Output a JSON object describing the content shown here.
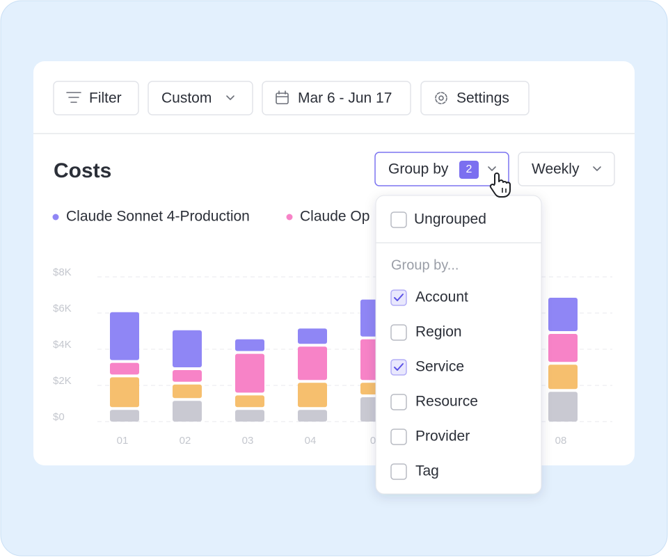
{
  "toolbar": {
    "filter": "Filter",
    "range_preset": "Custom",
    "date_range": "Mar 6 - Jun 17",
    "settings": "Settings"
  },
  "header": {
    "title": "Costs",
    "group_by": "Group by",
    "group_by_count": "2",
    "interval": "Weekly"
  },
  "chart_data": {
    "type": "bar",
    "stacked": true,
    "categories": [
      "01",
      "02",
      "03",
      "04",
      "0",
      null,
      null,
      "08"
    ],
    "series": [
      {
        "color": "#c9c9d2",
        "values": [
          800,
          1300,
          800,
          800,
          1500,
          null,
          null,
          1800
        ]
      },
      {
        "color": "#f6bf6e",
        "values": [
          1800,
          900,
          800,
          1500,
          800,
          null,
          null,
          1500
        ]
      },
      {
        "name": "Claude Op",
        "color": "#f783c7",
        "values": [
          800,
          800,
          2300,
          2000,
          2400,
          null,
          null,
          1700
        ]
      },
      {
        "name": "Claude Sonnet 4-Production",
        "color": "#8f86f5",
        "values": [
          2800,
          2200,
          800,
          1000,
          2200,
          null,
          null,
          2000
        ]
      }
    ],
    "ylim": [
      0,
      8000
    ],
    "yticks": [
      {
        "value": 0,
        "label": "$0"
      },
      {
        "value": 2000,
        "label": "$2K"
      },
      {
        "value": 4000,
        "label": "$4K"
      },
      {
        "value": 6000,
        "label": "$6K"
      },
      {
        "value": 8000,
        "label": "$8K"
      }
    ],
    "grid": true
  },
  "dropdown": {
    "ungrouped": {
      "label": "Ungrouped",
      "checked": false
    },
    "section": "Group by...",
    "items": [
      {
        "label": "Account",
        "checked": true
      },
      {
        "label": "Region",
        "checked": false
      },
      {
        "label": "Service",
        "checked": true
      },
      {
        "label": "Resource",
        "checked": false
      },
      {
        "label": "Provider",
        "checked": false
      },
      {
        "label": "Tag",
        "checked": false
      }
    ]
  }
}
